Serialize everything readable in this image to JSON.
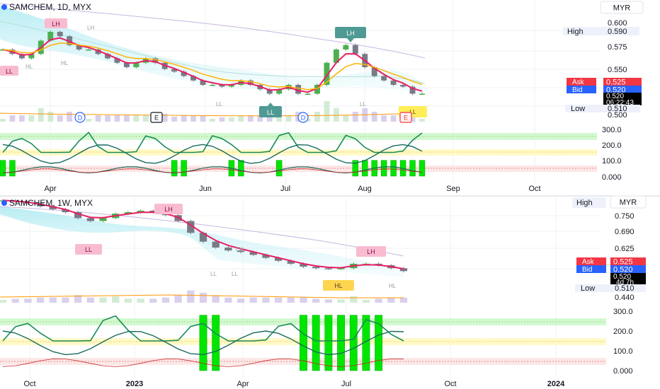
{
  "top": {
    "title": "SAMCHEM, 1D, MYX",
    "currency": "MYR",
    "price_axis": [
      "0.600",
      "0.575",
      "0.550",
      "0.500"
    ],
    "high": {
      "label": "High",
      "value": "0.590"
    },
    "ask": {
      "label": "Ask",
      "value": "0.525"
    },
    "bid": {
      "label": "Bid",
      "value": "0.520"
    },
    "last": {
      "value": "0.520",
      "countdown": "06:22:43"
    },
    "low": {
      "label": "Low",
      "value": "0.510"
    },
    "osc_axis": [
      "300.0",
      "200.0",
      "100.0",
      "0.000"
    ],
    "x_axis": [
      "Apr",
      "Jun",
      "Jul",
      "Aug",
      "Sep",
      "Oct"
    ],
    "markers": [
      "LH",
      "LL",
      "HL",
      "HL",
      "LH",
      "LL",
      "LH",
      "LL",
      "LL",
      "LL"
    ],
    "events": [
      "D",
      "E",
      "D",
      "E"
    ]
  },
  "bottom": {
    "title": "SAMCHEM, 1W, MYX",
    "currency": "MYR",
    "price_axis": [
      "0.750",
      "0.690",
      "0.625",
      "0.440"
    ],
    "high": {
      "label": "High",
      "value": "0.750"
    },
    "ask": {
      "label": "Ask",
      "value": "0.525"
    },
    "bid": {
      "label": "Bid",
      "value": "0.520"
    },
    "last": {
      "value": "0.520",
      "countdown": "4d 7h"
    },
    "low": {
      "label": "Low",
      "value": "0.510"
    },
    "osc_axis": [
      "300.0",
      "200.0",
      "100.0",
      "0.000"
    ],
    "x_axis": [
      "Oct",
      "2023",
      "Apr",
      "Jul",
      "Oct",
      "2024"
    ],
    "markers": [
      "LH",
      "LL",
      "LH",
      "LH",
      "HL",
      "LL",
      "LL",
      "HL"
    ]
  },
  "colors": {
    "up": "#4caf50",
    "down": "#787b86",
    "bull": "#00e600",
    "ema_fast": "#e91e63",
    "ema_mid": "#ffb300",
    "ema_slow": "#26a69a",
    "cloud": "#80deea",
    "osc1": "#1b8a5a",
    "osc2": "#1a6b5e",
    "ask": "#f23645",
    "bid": "#2962ff",
    "band_green": "#b9f6ca",
    "band_yellow": "#fff59d",
    "band_red": "#ffcdd2"
  },
  "chart_data": [
    {
      "type": "line",
      "title": "SAMCHEM, 1D, MYX",
      "x_ticks": [
        "Apr",
        "Jun",
        "Jul",
        "Aug",
        "Sep",
        "Oct"
      ],
      "ylim": [
        0.49,
        0.61
      ],
      "y_ticks": [
        0.6,
        0.575,
        0.55,
        0.5
      ],
      "series": [
        {
          "values": [
            0.57,
            0.565,
            0.56,
            0.565,
            0.58,
            0.59,
            0.585,
            0.575,
            0.57,
            0.57,
            0.565,
            0.56,
            0.555,
            0.55,
            0.555,
            0.56,
            0.555,
            0.548,
            0.545,
            0.54,
            0.535,
            0.53,
            0.53,
            0.528,
            0.53,
            0.535,
            0.53,
            0.525,
            0.52,
            0.525,
            0.53,
            0.52,
            0.52,
            0.53,
            0.555,
            0.57,
            0.575,
            0.565,
            0.55,
            0.54,
            0.535,
            0.53,
            0.528,
            0.52,
            0.52
          ]
        }
      ],
      "oscillator": {
        "ylim": [
          0,
          300
        ],
        "y_ticks": [
          300,
          200,
          100,
          0
        ]
      },
      "annotations": {
        "swing_markers": [
          "LH",
          "LL",
          "HL",
          "HL",
          "LH",
          "LL",
          "LH",
          "LL",
          "LL",
          "LL"
        ],
        "events": [
          "D",
          "E",
          "D",
          "E"
        ]
      }
    },
    {
      "type": "line",
      "title": "SAMCHEM, 1W, MYX",
      "x_ticks": [
        "Oct",
        "2023",
        "Apr",
        "Jul",
        "Oct",
        "2024"
      ],
      "ylim": [
        0.42,
        0.78
      ],
      "y_ticks": [
        0.75,
        0.69,
        0.625,
        0.44
      ],
      "series": [
        {
          "values": [
            0.76,
            0.755,
            0.75,
            0.74,
            0.73,
            0.72,
            0.7,
            0.69,
            0.7,
            0.715,
            0.72,
            0.725,
            0.72,
            0.71,
            0.69,
            0.65,
            0.62,
            0.6,
            0.59,
            0.585,
            0.575,
            0.565,
            0.555,
            0.545,
            0.535,
            0.53,
            0.528,
            0.53,
            0.545,
            0.545,
            0.54,
            0.53,
            0.52
          ]
        }
      ],
      "oscillator": {
        "ylim": [
          0,
          300
        ],
        "y_ticks": [
          300,
          200,
          100,
          0
        ]
      },
      "annotations": {
        "swing_markers": [
          "LH",
          "LL",
          "LH",
          "LH",
          "HL",
          "LL",
          "LL",
          "HL"
        ]
      }
    }
  ]
}
